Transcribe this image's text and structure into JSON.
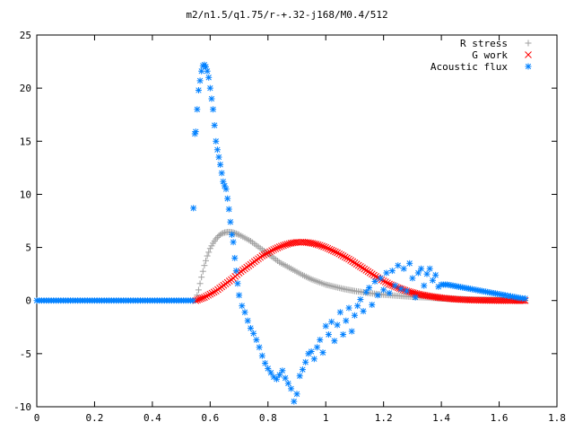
{
  "chart_data": {
    "type": "scatter",
    "title": "m2/n1.5/q1.75/r-+.32-j168/M0.4/512",
    "xlim": [
      0,
      1.8
    ],
    "ylim": [
      -10,
      25
    ],
    "x_ticks": [
      "0",
      "0.2",
      "0.4",
      "0.6",
      "0.8",
      "1",
      "1.2",
      "1.4",
      "1.6",
      "1.8"
    ],
    "y_ticks": [
      "-10",
      "-5",
      "0",
      "5",
      "10",
      "15",
      "20",
      "25"
    ],
    "grid": false,
    "legend_position": "top-right",
    "series": [
      {
        "name": "R stress",
        "marker": "plus",
        "color": "#a0a0a0",
        "points": [
          [
            0.55,
            0
          ],
          [
            0.56,
            1.0
          ],
          [
            0.57,
            2.2
          ],
          [
            0.58,
            3.3
          ],
          [
            0.59,
            4.2
          ],
          [
            0.6,
            4.9
          ],
          [
            0.61,
            5.4
          ],
          [
            0.62,
            5.8
          ],
          [
            0.63,
            6.1
          ],
          [
            0.64,
            6.3
          ],
          [
            0.65,
            6.4
          ],
          [
            0.66,
            6.45
          ],
          [
            0.67,
            6.45
          ],
          [
            0.68,
            6.4
          ],
          [
            0.69,
            6.3
          ],
          [
            0.7,
            6.2
          ],
          [
            0.72,
            5.9
          ],
          [
            0.74,
            5.6
          ],
          [
            0.76,
            5.2
          ],
          [
            0.78,
            4.8
          ],
          [
            0.8,
            4.4
          ],
          [
            0.82,
            4.0
          ],
          [
            0.84,
            3.6
          ],
          [
            0.86,
            3.3
          ],
          [
            0.88,
            3.0
          ],
          [
            0.9,
            2.7
          ],
          [
            0.92,
            2.4
          ],
          [
            0.95,
            2.0
          ],
          [
            0.98,
            1.7
          ],
          [
            1.0,
            1.5
          ],
          [
            1.03,
            1.3
          ],
          [
            1.06,
            1.1
          ],
          [
            1.1,
            0.9
          ],
          [
            1.15,
            0.7
          ],
          [
            1.2,
            0.55
          ],
          [
            1.25,
            0.45
          ],
          [
            1.3,
            0.35
          ],
          [
            1.35,
            0.28
          ],
          [
            1.4,
            0.2
          ],
          [
            1.45,
            0.15
          ],
          [
            1.5,
            0.1
          ],
          [
            1.55,
            0.08
          ],
          [
            1.6,
            0.06
          ],
          [
            1.65,
            0.04
          ],
          [
            1.69,
            0.02
          ]
        ]
      },
      {
        "name": "G work",
        "marker": "cross",
        "color": "#ff0000",
        "points": [
          [
            0.55,
            0
          ],
          [
            0.58,
            0.3
          ],
          [
            0.6,
            0.6
          ],
          [
            0.62,
            0.9
          ],
          [
            0.64,
            1.3
          ],
          [
            0.66,
            1.7
          ],
          [
            0.68,
            2.1
          ],
          [
            0.7,
            2.6
          ],
          [
            0.72,
            3.0
          ],
          [
            0.74,
            3.4
          ],
          [
            0.76,
            3.8
          ],
          [
            0.78,
            4.2
          ],
          [
            0.8,
            4.5
          ],
          [
            0.82,
            4.8
          ],
          [
            0.84,
            5.05
          ],
          [
            0.86,
            5.25
          ],
          [
            0.88,
            5.4
          ],
          [
            0.9,
            5.48
          ],
          [
            0.92,
            5.5
          ],
          [
            0.94,
            5.45
          ],
          [
            0.96,
            5.35
          ],
          [
            0.98,
            5.2
          ],
          [
            1.0,
            5.0
          ],
          [
            1.02,
            4.75
          ],
          [
            1.04,
            4.5
          ],
          [
            1.06,
            4.2
          ],
          [
            1.08,
            3.9
          ],
          [
            1.1,
            3.55
          ],
          [
            1.12,
            3.2
          ],
          [
            1.14,
            2.85
          ],
          [
            1.16,
            2.5
          ],
          [
            1.18,
            2.15
          ],
          [
            1.2,
            1.85
          ],
          [
            1.22,
            1.55
          ],
          [
            1.25,
            1.2
          ],
          [
            1.28,
            0.9
          ],
          [
            1.32,
            0.6
          ],
          [
            1.36,
            0.4
          ],
          [
            1.4,
            0.25
          ],
          [
            1.45,
            0.12
          ],
          [
            1.5,
            0.05
          ],
          [
            1.55,
            0.02
          ],
          [
            1.6,
            0.0
          ],
          [
            1.65,
            0.0
          ],
          [
            1.69,
            0.0
          ]
        ]
      },
      {
        "name": "Acoustic flux",
        "marker": "star",
        "color": "#0080ff",
        "points": [
          [
            0.0,
            0
          ],
          [
            0.05,
            0
          ],
          [
            0.1,
            0
          ],
          [
            0.15,
            0
          ],
          [
            0.2,
            0
          ],
          [
            0.25,
            0
          ],
          [
            0.3,
            0
          ],
          [
            0.35,
            0
          ],
          [
            0.4,
            0
          ],
          [
            0.45,
            0
          ],
          [
            0.5,
            0
          ],
          [
            0.54,
            0
          ],
          [
            0.542,
            8.7
          ],
          [
            0.547,
            15.7
          ],
          [
            0.55,
            15.9
          ],
          [
            0.555,
            18.0
          ],
          [
            0.56,
            19.8
          ],
          [
            0.565,
            20.7
          ],
          [
            0.57,
            21.6
          ],
          [
            0.575,
            22.1
          ],
          [
            0.58,
            22.2
          ],
          [
            0.585,
            22.0
          ],
          [
            0.59,
            21.6
          ],
          [
            0.595,
            21.0
          ],
          [
            0.6,
            20.0
          ],
          [
            0.605,
            19.0
          ],
          [
            0.61,
            18.0
          ],
          [
            0.615,
            16.5
          ],
          [
            0.62,
            15.0
          ],
          [
            0.625,
            14.2
          ],
          [
            0.63,
            13.5
          ],
          [
            0.635,
            12.8
          ],
          [
            0.64,
            12.0
          ],
          [
            0.645,
            11.2
          ],
          [
            0.65,
            10.8
          ],
          [
            0.655,
            10.5
          ],
          [
            0.66,
            9.6
          ],
          [
            0.665,
            8.6
          ],
          [
            0.67,
            7.4
          ],
          [
            0.675,
            6.2
          ],
          [
            0.68,
            5.5
          ],
          [
            0.685,
            4.0
          ],
          [
            0.69,
            2.8
          ],
          [
            0.695,
            1.6
          ],
          [
            0.7,
            0.5
          ],
          [
            0.71,
            -0.5
          ],
          [
            0.72,
            -1.1
          ],
          [
            0.73,
            -1.9
          ],
          [
            0.74,
            -2.6
          ],
          [
            0.75,
            -3.1
          ],
          [
            0.76,
            -3.7
          ],
          [
            0.77,
            -4.4
          ],
          [
            0.78,
            -5.2
          ],
          [
            0.79,
            -5.9
          ],
          [
            0.8,
            -6.4
          ],
          [
            0.81,
            -6.8
          ],
          [
            0.82,
            -7.2
          ],
          [
            0.83,
            -7.4
          ],
          [
            0.84,
            -7.0
          ],
          [
            0.85,
            -6.6
          ],
          [
            0.86,
            -7.3
          ],
          [
            0.87,
            -7.8
          ],
          [
            0.88,
            -8.3
          ],
          [
            0.89,
            -9.5
          ],
          [
            0.9,
            -8.8
          ],
          [
            0.91,
            -7.1
          ],
          [
            0.92,
            -6.5
          ],
          [
            0.93,
            -5.8
          ],
          [
            0.94,
            -5.0
          ],
          [
            0.95,
            -4.8
          ],
          [
            0.96,
            -5.5
          ],
          [
            0.97,
            -4.4
          ],
          [
            0.98,
            -3.7
          ],
          [
            0.99,
            -4.9
          ],
          [
            1.0,
            -2.4
          ],
          [
            1.01,
            -3.2
          ],
          [
            1.02,
            -2.0
          ],
          [
            1.03,
            -3.8
          ],
          [
            1.04,
            -2.3
          ],
          [
            1.05,
            -1.1
          ],
          [
            1.06,
            -3.2
          ],
          [
            1.07,
            -1.9
          ],
          [
            1.08,
            -0.7
          ],
          [
            1.09,
            -2.9
          ],
          [
            1.1,
            -1.4
          ],
          [
            1.11,
            -0.5
          ],
          [
            1.12,
            0.1
          ],
          [
            1.13,
            -1.0
          ],
          [
            1.14,
            0.8
          ],
          [
            1.15,
            1.2
          ],
          [
            1.16,
            -0.4
          ],
          [
            1.17,
            1.8
          ],
          [
            1.18,
            0.5
          ],
          [
            1.19,
            2.1
          ],
          [
            1.2,
            1.0
          ],
          [
            1.21,
            2.6
          ],
          [
            1.22,
            0.7
          ],
          [
            1.23,
            2.8
          ],
          [
            1.24,
            1.4
          ],
          [
            1.25,
            3.3
          ],
          [
            1.26,
            1.1
          ],
          [
            1.27,
            3.0
          ],
          [
            1.28,
            0.9
          ],
          [
            1.29,
            3.5
          ],
          [
            1.3,
            2.1
          ],
          [
            1.31,
            0.3
          ],
          [
            1.32,
            2.6
          ],
          [
            1.33,
            3.0
          ],
          [
            1.34,
            1.4
          ],
          [
            1.35,
            2.5
          ],
          [
            1.36,
            3.0
          ],
          [
            1.37,
            1.9
          ],
          [
            1.38,
            2.4
          ],
          [
            1.39,
            1.3
          ],
          [
            1.4,
            1.5
          ],
          [
            1.42,
            1.5
          ],
          [
            1.44,
            1.4
          ],
          [
            1.46,
            1.3
          ],
          [
            1.48,
            1.2
          ],
          [
            1.5,
            1.1
          ],
          [
            1.52,
            1.0
          ],
          [
            1.54,
            0.9
          ],
          [
            1.56,
            0.8
          ],
          [
            1.58,
            0.7
          ],
          [
            1.6,
            0.6
          ],
          [
            1.62,
            0.5
          ],
          [
            1.64,
            0.4
          ],
          [
            1.66,
            0.3
          ],
          [
            1.68,
            0.2
          ],
          [
            1.69,
            0.2
          ]
        ]
      }
    ]
  }
}
